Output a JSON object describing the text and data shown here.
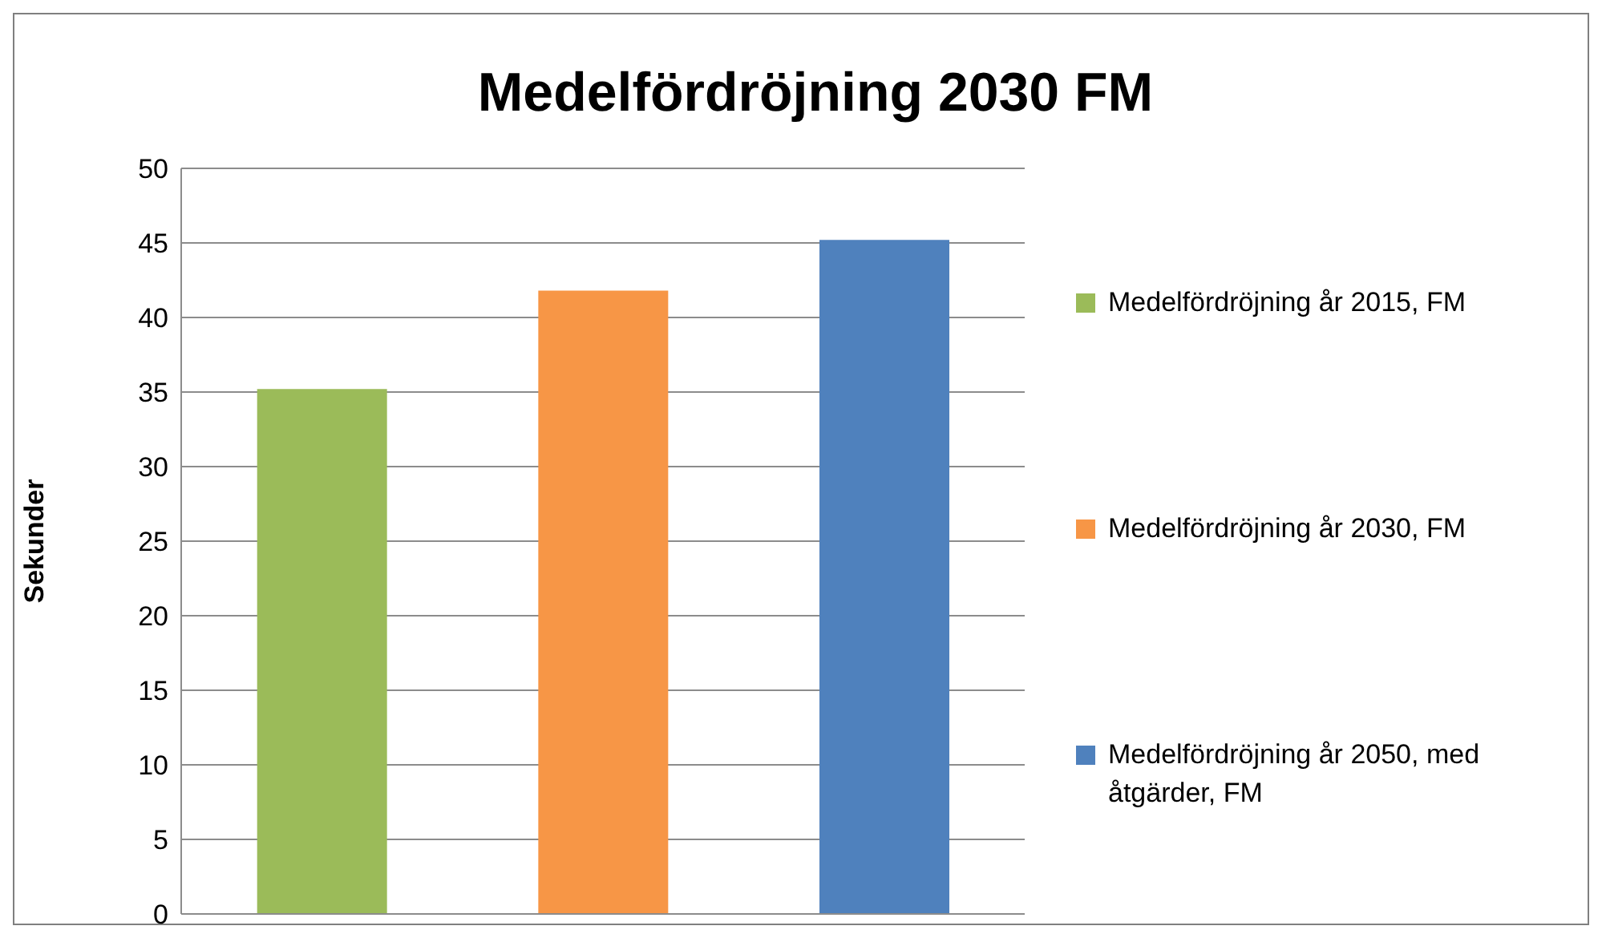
{
  "chart_data": {
    "type": "bar",
    "title": "Medelfördröjning 2030 FM",
    "ylabel": "Sekunder",
    "categories": [
      null,
      null,
      null
    ],
    "series": [
      {
        "name": "Medelfördröjning år 2015, FM",
        "color": "#9bbb59",
        "values": [
          35.2,
          null,
          null
        ]
      },
      {
        "name": "Medelfördröjning år 2030, FM",
        "color": "#f79646",
        "values": [
          null,
          41.8,
          null
        ]
      },
      {
        "name": "Medelfördröjning år 2050, med åtgärder, FM",
        "color": "#4f81bd",
        "values": [
          null,
          null,
          45.2
        ]
      }
    ],
    "ylim": [
      0,
      50
    ],
    "yticks": [
      0,
      5,
      10,
      15,
      20,
      25,
      30,
      35,
      40,
      45,
      50
    ],
    "grid": "y",
    "legend": "right"
  }
}
